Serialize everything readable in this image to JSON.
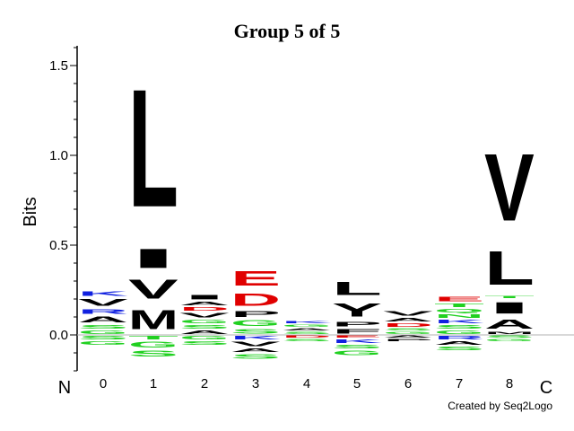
{
  "chart_data": {
    "type": "sequence-logo",
    "title": "Group 5 of 5",
    "ylabel": "Bits",
    "ylim": [
      -0.2,
      1.6
    ],
    "yticks": [
      "0.0",
      "0.5",
      "1.0",
      "1.5"
    ],
    "n_label": "N",
    "c_label": "C",
    "positions": [
      "0",
      "1",
      "2",
      "3",
      "4",
      "5",
      "6",
      "7",
      "8"
    ],
    "credit": "Created by Seq2Logo",
    "colors": {
      "black": "#000000",
      "red": "#e00000",
      "blue": "#1020e0",
      "green": "#20d020",
      "purple": "#a000a0"
    },
    "columns": [
      {
        "pos": "0",
        "up": [
          {
            "aa": "G",
            "h": 0.03,
            "c": "green"
          },
          {
            "aa": "S",
            "h": 0.03,
            "c": "green"
          },
          {
            "aa": "A",
            "h": 0.05,
            "c": "black"
          },
          {
            "aa": "R",
            "h": 0.04,
            "c": "blue"
          },
          {
            "aa": "V",
            "h": 0.06,
            "c": "black"
          },
          {
            "aa": "K",
            "h": 0.04,
            "c": "blue"
          }
        ],
        "down": [
          {
            "aa": "S",
            "h": 0.03,
            "c": "green"
          },
          {
            "aa": "G",
            "h": 0.03,
            "c": "green"
          }
        ]
      },
      {
        "pos": "1",
        "up": [
          {
            "aa": "M",
            "h": 0.17,
            "c": "black"
          },
          {
            "aa": "V",
            "h": 0.17,
            "c": "black"
          },
          {
            "aa": "I",
            "h": 0.17,
            "c": "black"
          },
          {
            "aa": "L",
            "h": 1.05,
            "c": "black"
          }
        ],
        "down": [
          {
            "aa": "T",
            "h": 0.03,
            "c": "green"
          },
          {
            "aa": "G",
            "h": 0.05,
            "c": "green"
          },
          {
            "aa": "S",
            "h": 0.05,
            "c": "green"
          }
        ]
      },
      {
        "pos": "2",
        "up": [
          {
            "aa": "A",
            "h": 0.03,
            "c": "black"
          },
          {
            "aa": "S",
            "h": 0.03,
            "c": "green"
          },
          {
            "aa": "G",
            "h": 0.03,
            "c": "green"
          },
          {
            "aa": "V",
            "h": 0.04,
            "c": "black"
          },
          {
            "aa": "D",
            "h": 0.03,
            "c": "red"
          },
          {
            "aa": "A",
            "h": 0.03,
            "c": "black"
          },
          {
            "aa": "I",
            "h": 0.04,
            "c": "black"
          }
        ],
        "down": [
          {
            "aa": "G",
            "h": 0.03,
            "c": "green"
          },
          {
            "aa": "S",
            "h": 0.03,
            "c": "green"
          }
        ]
      },
      {
        "pos": "3",
        "up": [
          {
            "aa": "S",
            "h": 0.04,
            "c": "green"
          },
          {
            "aa": "G",
            "h": 0.05,
            "c": "green"
          },
          {
            "aa": "P",
            "h": 0.05,
            "c": "black"
          },
          {
            "aa": "D",
            "h": 0.11,
            "c": "red"
          },
          {
            "aa": "E",
            "h": 0.13,
            "c": "red"
          }
        ],
        "down": [
          {
            "aa": "K",
            "h": 0.03,
            "c": "blue"
          },
          {
            "aa": "V",
            "h": 0.04,
            "c": "black"
          },
          {
            "aa": "A",
            "h": 0.03,
            "c": "black"
          },
          {
            "aa": "S",
            "h": 0.04,
            "c": "green"
          }
        ]
      },
      {
        "pos": "4",
        "up": [
          {
            "aa": "S",
            "h": 0.02,
            "c": "green"
          },
          {
            "aa": "A",
            "h": 0.02,
            "c": "black"
          },
          {
            "aa": "G",
            "h": 0.02,
            "c": "green"
          },
          {
            "aa": "K",
            "h": 0.02,
            "c": "blue"
          }
        ],
        "down": [
          {
            "aa": "D",
            "h": 0.02,
            "c": "red"
          },
          {
            "aa": "S",
            "h": 0.02,
            "c": "green"
          }
        ]
      },
      {
        "pos": "5",
        "up": [
          {
            "aa": "F",
            "h": 0.04,
            "c": "black"
          },
          {
            "aa": "P",
            "h": 0.04,
            "c": "black"
          },
          {
            "aa": "Y",
            "h": 0.12,
            "c": "black"
          },
          {
            "aa": "L",
            "h": 0.12,
            "c": "black"
          }
        ],
        "down": [
          {
            "aa": "E",
            "h": 0.02,
            "c": "red"
          },
          {
            "aa": "K",
            "h": 0.03,
            "c": "blue"
          },
          {
            "aa": "S",
            "h": 0.03,
            "c": "green"
          },
          {
            "aa": "G",
            "h": 0.04,
            "c": "green"
          }
        ]
      },
      {
        "pos": "6",
        "up": [
          {
            "aa": "G",
            "h": 0.02,
            "c": "green"
          },
          {
            "aa": "S",
            "h": 0.02,
            "c": "green"
          },
          {
            "aa": "D",
            "h": 0.03,
            "c": "red"
          },
          {
            "aa": "A",
            "h": 0.03,
            "c": "black"
          },
          {
            "aa": "V",
            "h": 0.04,
            "c": "black"
          }
        ],
        "down": [
          {
            "aa": "A",
            "h": 0.02,
            "c": "black"
          },
          {
            "aa": "P",
            "h": 0.02,
            "c": "black"
          }
        ]
      },
      {
        "pos": "7",
        "up": [
          {
            "aa": "G",
            "h": 0.03,
            "c": "green"
          },
          {
            "aa": "S",
            "h": 0.03,
            "c": "green"
          },
          {
            "aa": "K",
            "h": 0.03,
            "c": "blue"
          },
          {
            "aa": "N",
            "h": 0.03,
            "c": "green"
          },
          {
            "aa": "Q",
            "h": 0.03,
            "c": "green"
          },
          {
            "aa": "T",
            "h": 0.03,
            "c": "green"
          },
          {
            "aa": "E",
            "h": 0.04,
            "c": "red"
          }
        ],
        "down": [
          {
            "aa": "R",
            "h": 0.03,
            "c": "blue"
          },
          {
            "aa": "A",
            "h": 0.03,
            "c": "black"
          },
          {
            "aa": "S",
            "h": 0.03,
            "c": "green"
          }
        ]
      },
      {
        "pos": "8",
        "up": [
          {
            "aa": "M",
            "h": 0.02,
            "c": "black"
          },
          {
            "aa": "A",
            "h": 0.08,
            "c": "black"
          },
          {
            "aa": "I",
            "h": 0.1,
            "c": "black"
          },
          {
            "aa": "T",
            "h": 0.02,
            "c": "green"
          },
          {
            "aa": "L",
            "h": 0.3,
            "c": "black"
          },
          {
            "aa": "V",
            "h": 0.6,
            "c": "black"
          }
        ],
        "down": [
          {
            "aa": "S",
            "h": 0.02,
            "c": "green"
          },
          {
            "aa": "G",
            "h": 0.02,
            "c": "green"
          }
        ]
      }
    ]
  }
}
